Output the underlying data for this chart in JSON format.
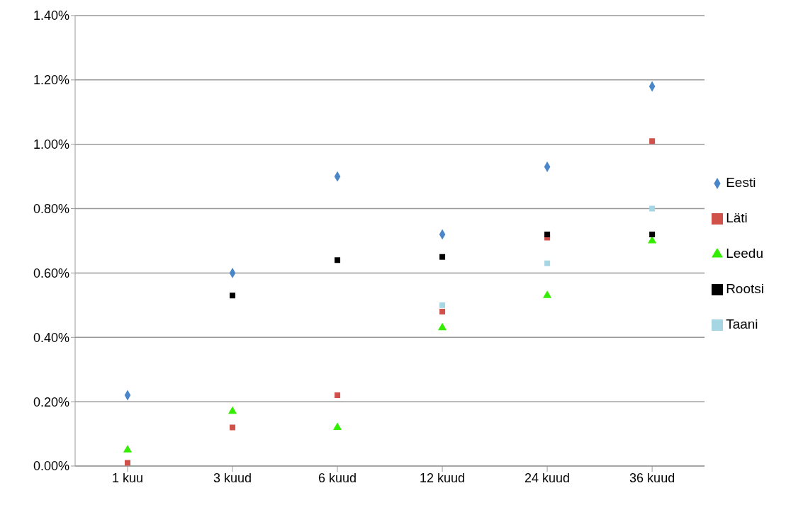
{
  "chart_data": {
    "type": "scatter",
    "categories": [
      "1 kuu",
      "3 kuud",
      "6 kuud",
      "12 kuud",
      "24 kuud",
      "36 kuud"
    ],
    "ylim": [
      0,
      1.4
    ],
    "yticks": [
      {
        "value": 0,
        "label": "0.00%"
      },
      {
        "value": 0.2,
        "label": "0.20%"
      },
      {
        "value": 0.4,
        "label": "0.40%"
      },
      {
        "value": 0.6,
        "label": "0.60%"
      },
      {
        "value": 0.8,
        "label": "0.80%"
      },
      {
        "value": 1.0,
        "label": "1.00%"
      },
      {
        "value": 1.2,
        "label": "1.20%"
      },
      {
        "value": 1.4,
        "label": "1.40%"
      }
    ],
    "grid": "y",
    "legend": "right",
    "series": [
      {
        "name": "Eesti",
        "color": "#4a86c8",
        "marker": "diamond",
        "values": [
          0.22,
          0.6,
          0.9,
          0.72,
          0.93,
          1.18
        ]
      },
      {
        "name": "Läti",
        "color": "#d0504a",
        "marker": "square",
        "values": [
          0.01,
          0.12,
          0.22,
          0.48,
          0.71,
          1.01
        ]
      },
      {
        "name": "Leedu",
        "color": "#33ee00",
        "marker": "triangle",
        "values": [
          0.05,
          0.17,
          0.12,
          0.43,
          0.53,
          0.7
        ]
      },
      {
        "name": "Rootsi",
        "color": "#000000",
        "marker": "square",
        "values": [
          null,
          0.53,
          0.64,
          0.65,
          0.72,
          0.72
        ]
      },
      {
        "name": "Taani",
        "color": "#a6d6e3",
        "marker": "square",
        "values": [
          null,
          null,
          null,
          0.5,
          0.63,
          0.8
        ]
      }
    ]
  }
}
